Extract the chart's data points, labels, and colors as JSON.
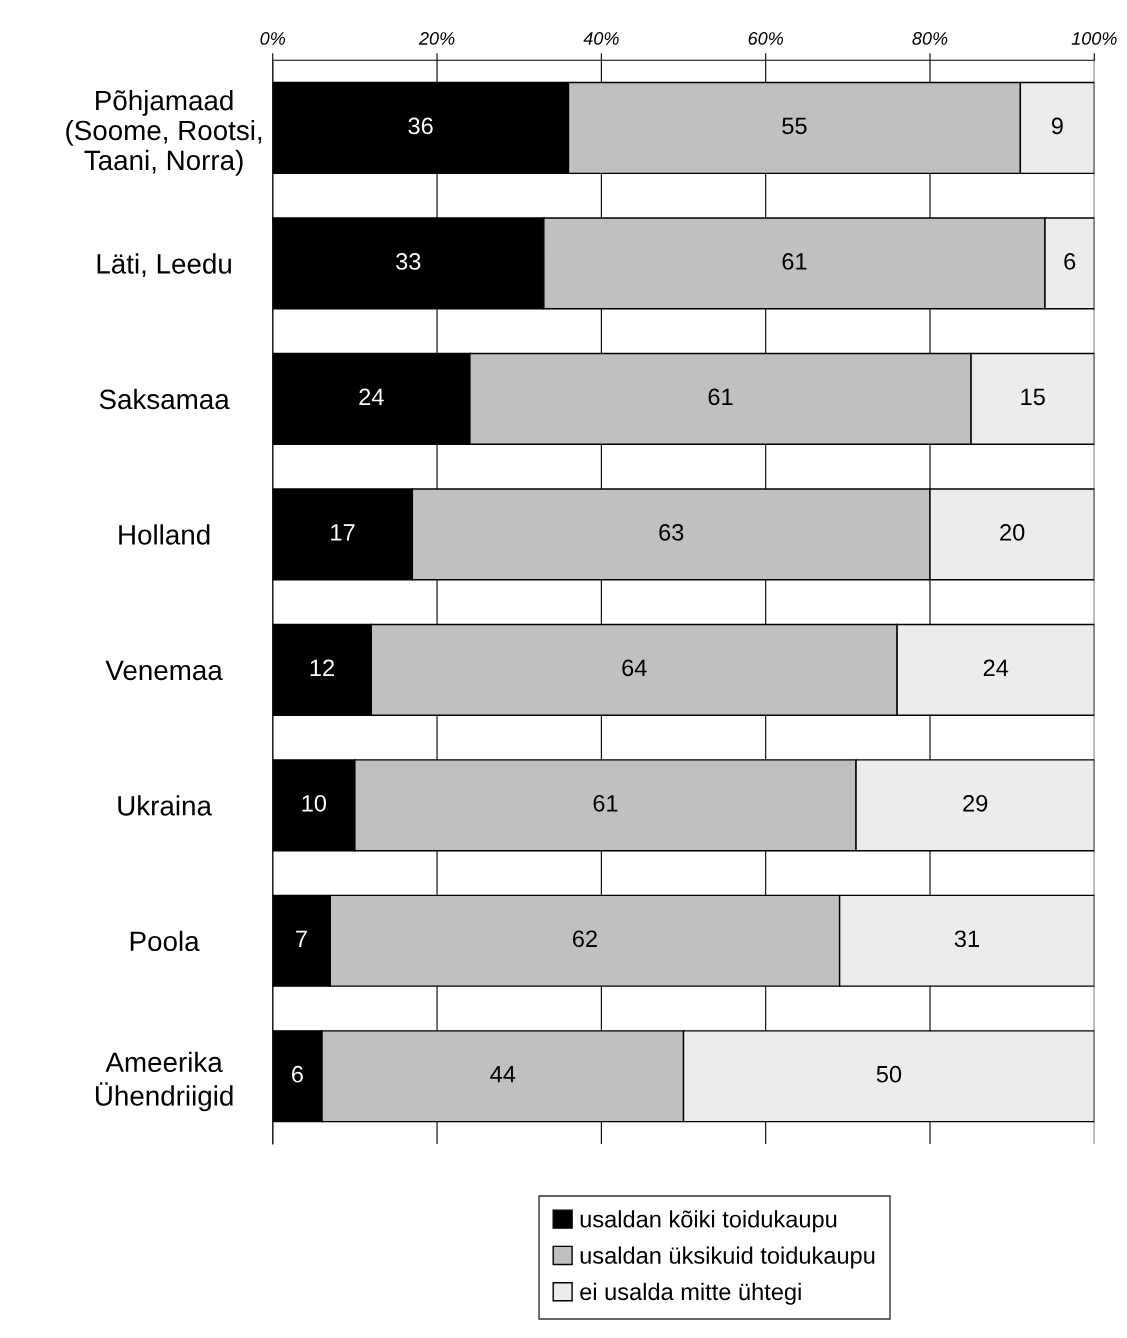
{
  "chart_data": {
    "type": "bar",
    "orientation": "horizontal",
    "stacked": true,
    "categories": [
      "Põhjamaad\n(Soome, Rootsi,\nTaani, Norra)",
      "Läti, Leedu",
      "Saksamaa",
      "Holland",
      "Venemaa",
      "Ukraina",
      "Poola",
      "Ameerika\nÜhendriigid"
    ],
    "series": [
      {
        "name": "usaldan kõiki toidukaupu",
        "color": "#000000",
        "values": [
          36,
          33,
          24,
          17,
          12,
          10,
          7,
          6
        ]
      },
      {
        "name": "usaldan üksikuid toidukaupu",
        "color": "#c0c0c0",
        "values": [
          55,
          61,
          61,
          63,
          64,
          61,
          62,
          44
        ]
      },
      {
        "name": "ei usalda mitte ühtegi",
        "color": "#ececec",
        "values": [
          9,
          6,
          15,
          20,
          24,
          29,
          31,
          50
        ]
      }
    ],
    "xlim": [
      0,
      100
    ],
    "xticks": [
      {
        "value": 0,
        "label": "0%"
      },
      {
        "value": 20,
        "label": "20%"
      },
      {
        "value": 40,
        "label": "40%"
      },
      {
        "value": 60,
        "label": "60%"
      },
      {
        "value": 80,
        "label": "80%"
      },
      {
        "value": 100,
        "label": "100%"
      }
    ],
    "grid": "x",
    "legend": "bottom",
    "data_labels": true
  }
}
